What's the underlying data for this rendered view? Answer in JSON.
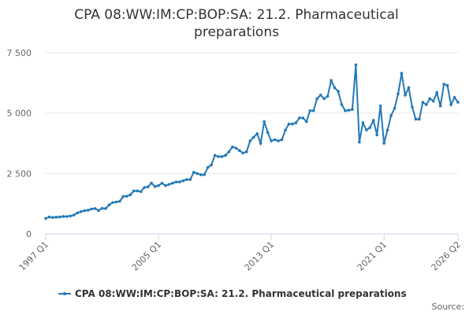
{
  "chart_data": {
    "type": "line",
    "title": "CPA 08:WW:IM:CP:BOP:SA: 21.2. Pharmaceutical preparations",
    "source": "Source:",
    "categories": [
      "1997 Q1",
      null,
      null,
      null,
      null,
      null,
      null,
      null,
      null,
      null,
      null,
      null,
      null,
      null,
      null,
      null,
      null,
      null,
      null,
      null,
      null,
      null,
      null,
      null,
      null,
      null,
      null,
      null,
      null,
      null,
      null,
      null,
      "2005 Q1",
      null,
      null,
      null,
      null,
      null,
      null,
      null,
      null,
      null,
      null,
      null,
      null,
      null,
      null,
      null,
      null,
      null,
      null,
      null,
      null,
      null,
      null,
      null,
      null,
      null,
      null,
      null,
      null,
      null,
      null,
      null,
      "2013 Q1",
      null,
      null,
      null,
      null,
      null,
      null,
      null,
      null,
      null,
      null,
      null,
      null,
      null,
      null,
      null,
      null,
      null,
      null,
      null,
      null,
      null,
      null,
      null,
      null,
      null,
      null,
      null,
      null,
      null,
      null,
      null,
      "2021 Q1",
      null,
      null,
      null,
      null,
      null,
      null,
      null,
      null,
      null,
      null,
      null,
      null,
      null,
      null,
      null,
      null,
      null,
      null,
      null,
      null,
      "2026 Q2"
    ],
    "series": [
      {
        "name": "CPA 08:WW:IM:CP:BOP:SA: 21.2. Pharmaceutical preparations",
        "color": "#2479b5",
        "values": [
          640,
          700,
          680,
          690,
          700,
          720,
          720,
          740,
          780,
          870,
          920,
          960,
          980,
          1030,
          1050,
          970,
          1060,
          1050,
          1200,
          1300,
          1320,
          1350,
          1550,
          1560,
          1620,
          1780,
          1780,
          1750,
          1920,
          1950,
          2100,
          1960,
          2000,
          2100,
          2000,
          2050,
          2100,
          2150,
          2150,
          2200,
          2250,
          2250,
          2550,
          2500,
          2450,
          2450,
          2750,
          2850,
          3250,
          3200,
          3200,
          3250,
          3400,
          3600,
          3550,
          3450,
          3350,
          3400,
          3850,
          4000,
          4150,
          3750,
          4650,
          4200,
          3850,
          3900,
          3850,
          3900,
          4300,
          4550,
          4550,
          4600,
          4800,
          4800,
          4650,
          5100,
          5100,
          5600,
          5750,
          5600,
          5700,
          6350,
          6050,
          5900,
          5350,
          5100,
          5120,
          5150,
          7000,
          3800,
          4600,
          4300,
          4400,
          4700,
          4100,
          5300,
          3750,
          4300,
          4900,
          5200,
          5800,
          6650,
          5750,
          6050,
          5250,
          4750,
          4750,
          5450,
          5350,
          5600,
          5500,
          5850,
          5300,
          6200,
          6150,
          5350,
          5650,
          5450
        ]
      }
    ],
    "ylim": [
      0,
      7500
    ],
    "yticks": [
      0,
      {
        "value": 2500,
        "label": "2 500"
      },
      {
        "value": 5000,
        "label": "5 000"
      },
      {
        "value": 7500,
        "label": "7 500"
      }
    ],
    "grid": true
  }
}
